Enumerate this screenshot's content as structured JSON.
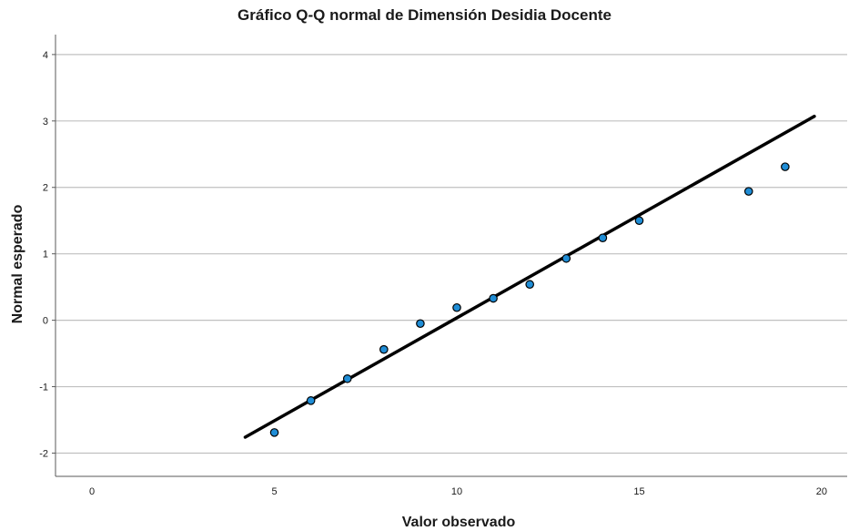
{
  "chart_data": {
    "type": "scatter",
    "title": "Gráfico Q-Q normal de Dimensión Desidia Docente",
    "xlabel": "Valor observado",
    "ylabel": "Normal esperado",
    "xlim": [
      -1,
      20.7
    ],
    "ylim": [
      -2.35,
      4.3
    ],
    "xticks": [
      0,
      5,
      10,
      15,
      20
    ],
    "yticks": [
      -2,
      -1,
      0,
      1,
      2,
      3,
      4
    ],
    "xtick_labels": [
      "0",
      "5",
      "10",
      "15",
      "20"
    ],
    "ytick_labels": [
      "-2",
      "-1",
      "0",
      "1",
      "2",
      "3",
      "4"
    ],
    "grid": "horizontal",
    "points": [
      {
        "x": 5,
        "y": -1.69
      },
      {
        "x": 6,
        "y": -1.21
      },
      {
        "x": 7,
        "y": -0.88
      },
      {
        "x": 8,
        "y": -0.44
      },
      {
        "x": 9,
        "y": -0.05
      },
      {
        "x": 10,
        "y": 0.19
      },
      {
        "x": 11,
        "y": 0.33
      },
      {
        "x": 12,
        "y": 0.54
      },
      {
        "x": 13,
        "y": 0.93
      },
      {
        "x": 14,
        "y": 1.24
      },
      {
        "x": 15,
        "y": 1.5
      },
      {
        "x": 18,
        "y": 1.94
      },
      {
        "x": 19,
        "y": 2.31
      }
    ],
    "reference_line": {
      "x1": 4.2,
      "y1": -1.76,
      "x2": 19.8,
      "y2": 3.07
    },
    "colors": {
      "point_fill": "#1f8dd6",
      "point_edge": "#000000",
      "line": "#000000",
      "grid": "#c0c0c0"
    }
  }
}
